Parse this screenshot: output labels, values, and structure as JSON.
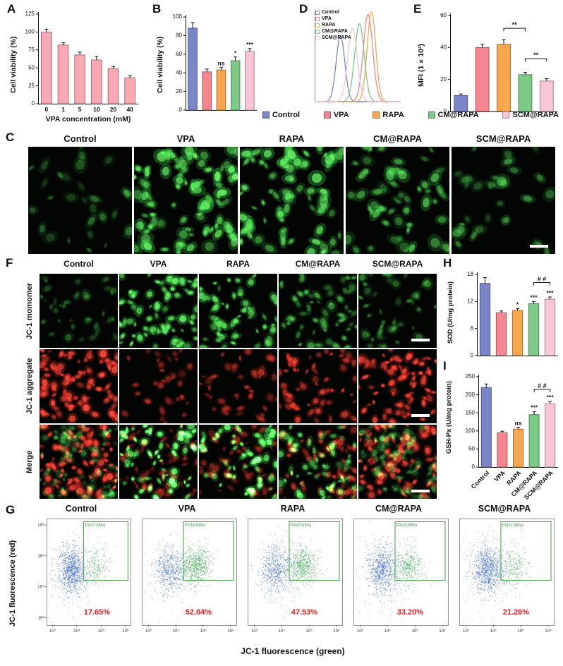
{
  "groups": [
    "Control",
    "VPA",
    "RAPA",
    "CM@RAPA",
    "SCM@RAPA"
  ],
  "palette": {
    "Control": "#7b86c9",
    "VPA": "#f5868f",
    "RAPA": "#f7a84e",
    "CM@RAPA": "#7dc988",
    "SCM@RAPA": "#f9c6d8"
  },
  "accent_colors": {
    "percent_text": "#e02020",
    "gate_stroke": "#3f9e3f",
    "panel_a_bar": "#f9a9b4"
  },
  "legend_row": [
    "Control",
    "VPA",
    "RAPA",
    "CM@RAPA",
    "SCM@RAPA"
  ],
  "panels": {
    "A": {
      "letter": "A",
      "ylabel": "Cell viability (%)",
      "xlabel": "VPA concentration (mM)"
    },
    "B": {
      "letter": "B",
      "ylabel": "Cell viability (%)"
    },
    "C": {
      "letter": "C",
      "titles": [
        "Control",
        "VPA",
        "RAPA",
        "CM@RAPA",
        "SCM@RAPA"
      ]
    },
    "D": {
      "letter": "D",
      "legend": [
        "Control",
        "VPA",
        "RAPA",
        "CM@RAPA",
        "SCM@RAPA"
      ]
    },
    "E": {
      "letter": "E",
      "ylabel": "MFI (1×10²)"
    },
    "F": {
      "letter": "F",
      "col_titles": [
        "Control",
        "VPA",
        "RAPA",
        "CM@RAPA",
        "SCM@RAPA"
      ],
      "row_labels": [
        "JC-1 momomer",
        "JC-1 aggregate",
        "Merge"
      ]
    },
    "G": {
      "letter": "G",
      "xlabel": "JC-1 fluorescence (green)",
      "ylabel": "JC-1 fluorescence (red)"
    },
    "H": {
      "letter": "H",
      "ylabel": "SOD (U/mg protein)"
    },
    "I": {
      "letter": "I",
      "ylabel": "GSH-Px (U/mg protein)"
    }
  },
  "chart_data": [
    {
      "id": "A",
      "type": "bar",
      "categories": [
        "0",
        "1",
        "5",
        "10",
        "20",
        "40"
      ],
      "values": [
        100,
        82,
        68,
        61,
        49,
        36
      ],
      "errors": [
        4,
        3,
        4,
        5,
        3,
        3
      ],
      "ylabel": "Cell viability (%)",
      "xlabel": "VPA concentration (mM)",
      "ylim": [
        0,
        125
      ],
      "yticks": [
        0,
        25,
        50,
        75,
        100,
        125
      ]
    },
    {
      "id": "B",
      "type": "bar",
      "categories": [
        "Control",
        "VPA",
        "RAPA",
        "CM@RAPA",
        "SCM@RAPA"
      ],
      "values": [
        88,
        41,
        43,
        53,
        63
      ],
      "errors": [
        6,
        3,
        3,
        4,
        3
      ],
      "annotations": [
        "",
        "",
        "ns",
        "*",
        "***"
      ],
      "ylabel": "Cell viability (%)",
      "ylim": [
        0,
        100
      ],
      "yticks": [
        0,
        20,
        40,
        60,
        80,
        100
      ]
    },
    {
      "id": "D",
      "type": "density",
      "series": [
        {
          "name": "Control",
          "peak": 0.3,
          "width": 0.05,
          "height": 0.72
        },
        {
          "name": "VPA",
          "peak": 0.62,
          "width": 0.055,
          "height": 0.95
        },
        {
          "name": "RAPA",
          "peak": 0.66,
          "width": 0.05,
          "height": 0.98
        },
        {
          "name": "CM@RAPA",
          "peak": 0.52,
          "width": 0.055,
          "height": 0.85
        },
        {
          "name": "SCM@RAPA",
          "peak": 0.44,
          "width": 0.055,
          "height": 0.8
        }
      ],
      "legend": [
        "Control",
        "VPA",
        "RAPA",
        "CM@RAPA",
        "SCM@RAPA"
      ]
    },
    {
      "id": "E",
      "type": "bar",
      "categories": [
        "Control",
        "VPA",
        "RAPA",
        "CM@RAPA",
        "SCM@RAPA"
      ],
      "values": [
        10,
        40,
        42,
        23,
        19
      ],
      "errors": [
        1,
        2,
        3,
        1.5,
        1.5
      ],
      "ylabel": "MFI (1×10²)",
      "ylim": [
        0,
        60
      ],
      "yticks": [
        0,
        20,
        40,
        60
      ],
      "brackets": [
        {
          "a": 2,
          "b": 3,
          "y": 52,
          "label": "**"
        },
        {
          "a": 3,
          "b": 4,
          "y": 33,
          "label": "**"
        }
      ]
    },
    {
      "id": "H",
      "type": "bar",
      "categories": [
        "Control",
        "VPA",
        "RAPA",
        "CM@RAPA",
        "SCM@RAPA"
      ],
      "values": [
        16,
        9.5,
        10,
        11.5,
        12.5
      ],
      "errors": [
        1.3,
        0.4,
        0.4,
        0.5,
        0.5
      ],
      "annotations": [
        "",
        "",
        "*",
        "***",
        "***"
      ],
      "ylabel": "SOD (U/mg protein)",
      "ylim": [
        0,
        18
      ],
      "yticks": [
        0,
        6,
        12,
        18
      ],
      "brackets": [
        {
          "a": 3,
          "b": 4,
          "y": 16.2,
          "label": "# #"
        }
      ]
    },
    {
      "id": "I",
      "type": "bar",
      "categories": [
        "Control",
        "VPA",
        "RAPA",
        "CM@RAPA",
        "SCM@RAPA"
      ],
      "values": [
        220,
        95,
        105,
        145,
        175
      ],
      "errors": [
        10,
        4,
        5,
        8,
        7
      ],
      "annotations": [
        "",
        "",
        "ns",
        "***",
        "***"
      ],
      "ylabel": "GSH-Px (U/mg protein)",
      "ylim": [
        0,
        250
      ],
      "yticks": [
        0,
        50,
        100,
        150,
        200,
        250
      ],
      "brackets": [
        {
          "a": 3,
          "b": 4,
          "y": 215,
          "label": "# #"
        }
      ],
      "rotate_categories": true
    },
    {
      "id": "G",
      "type": "scatter",
      "xlabel": "JC-1 fluorescence (green)",
      "ylabel": "JC-1 fluorescence (red)",
      "xticks": [
        "10²",
        "10⁴",
        "10⁶",
        "10⁸"
      ],
      "yticks": [
        "10⁸",
        "10⁶",
        "10⁴",
        "10²"
      ],
      "plots": [
        {
          "title": "Control",
          "gate_label": "P2(17.65%)",
          "percent": "17.65%",
          "gate_fraction": 0.18
        },
        {
          "title": "VPA",
          "gate_label": "P2(52.84%)",
          "percent": "52.84%",
          "gate_fraction": 0.53
        },
        {
          "title": "RAPA",
          "gate_label": "P2(47.53%)",
          "percent": "47.53%",
          "gate_fraction": 0.48
        },
        {
          "title": "CM@RAPA",
          "gate_label": "P2(33.20%)",
          "percent": "33.20%",
          "gate_fraction": 0.33
        },
        {
          "title": "SCM@RAPA",
          "gate_label": "P2(21.26%)",
          "percent": "21.26%",
          "gate_fraction": 0.21
        }
      ]
    }
  ],
  "microscopy": {
    "panel_c": [
      {
        "n": 28,
        "green": 0.35
      },
      {
        "n": 95,
        "green": 0.95
      },
      {
        "n": 78,
        "green": 0.9
      },
      {
        "n": 60,
        "green": 0.6
      },
      {
        "n": 32,
        "green": 0.45,
        "scalebar": true
      }
    ],
    "panel_f": [
      [
        {
          "n": 40,
          "green": 0.3
        },
        {
          "n": 75,
          "green": 0.95
        },
        {
          "n": 65,
          "green": 0.85
        },
        {
          "n": 55,
          "green": 0.6
        },
        {
          "n": 40,
          "green": 0.45,
          "scalebar": true
        }
      ],
      [
        {
          "n": 90,
          "red": 0.95
        },
        {
          "n": 35,
          "red": 0.5
        },
        {
          "n": 45,
          "red": 0.55
        },
        {
          "n": 60,
          "red": 0.75
        },
        {
          "n": 85,
          "red": 0.9,
          "scalebar": true
        }
      ],
      [
        {
          "n": 85,
          "red": 0.9,
          "green": 0.3
        },
        {
          "n": 70,
          "red": 0.35,
          "green": 0.9
        },
        {
          "n": 60,
          "red": 0.45,
          "green": 0.8
        },
        {
          "n": 60,
          "red": 0.6,
          "green": 0.6
        },
        {
          "n": 80,
          "red": 0.85,
          "green": 0.35,
          "scalebar": true
        }
      ]
    ]
  }
}
